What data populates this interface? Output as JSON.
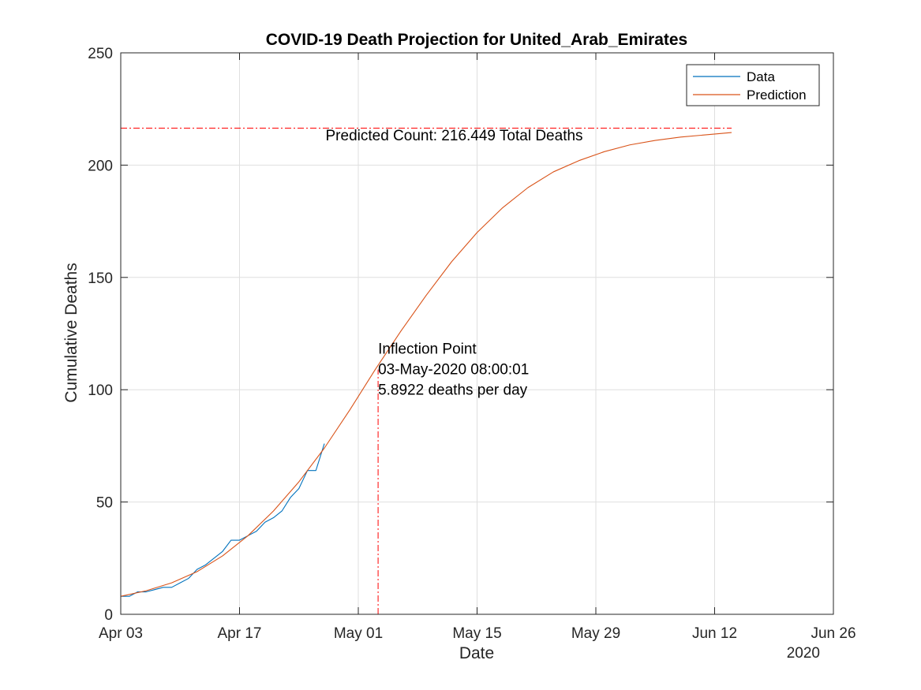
{
  "chart_data": {
    "type": "line",
    "title": "COVID-19 Death Projection for United_Arab_Emirates",
    "xlabel": "Date",
    "ylabel": "Cumulative Deaths",
    "x_secondary_label": "2020",
    "x_axis": {
      "type": "date",
      "range": [
        "2020-04-03",
        "2020-06-26"
      ],
      "ticks": [
        "2020-04-03",
        "2020-04-17",
        "2020-05-01",
        "2020-05-15",
        "2020-05-29",
        "2020-06-12",
        "2020-06-26"
      ],
      "tick_labels": [
        "Apr 03",
        "Apr 17",
        "May 01",
        "May 15",
        "May 29",
        "Jun 12",
        "Jun 26"
      ]
    },
    "ylim": [
      0,
      250
    ],
    "yticks": [
      0,
      50,
      100,
      150,
      200,
      250
    ],
    "grid": true,
    "legend_position": "top-right",
    "series": [
      {
        "name": "Data",
        "color": "#0072BD",
        "x": [
          "2020-04-03",
          "2020-04-04",
          "2020-04-05",
          "2020-04-06",
          "2020-04-07",
          "2020-04-08",
          "2020-04-09",
          "2020-04-10",
          "2020-04-11",
          "2020-04-12",
          "2020-04-13",
          "2020-04-14",
          "2020-04-15",
          "2020-04-16",
          "2020-04-17",
          "2020-04-18",
          "2020-04-19",
          "2020-04-20",
          "2020-04-21",
          "2020-04-22",
          "2020-04-23",
          "2020-04-24",
          "2020-04-25",
          "2020-04-26",
          "2020-04-27"
        ],
        "y": [
          8,
          8,
          10,
          10,
          11,
          12,
          12,
          14,
          16,
          20,
          22,
          25,
          28,
          33,
          33,
          35,
          37,
          41,
          43,
          46,
          52,
          56,
          64,
          64,
          76
        ]
      },
      {
        "name": "Prediction",
        "color": "#D95319",
        "x": [
          "2020-04-03",
          "2020-04-06",
          "2020-04-09",
          "2020-04-12",
          "2020-04-15",
          "2020-04-18",
          "2020-04-21",
          "2020-04-24",
          "2020-04-27",
          "2020-04-30",
          "2020-05-03",
          "2020-05-06",
          "2020-05-09",
          "2020-05-12",
          "2020-05-15",
          "2020-05-18",
          "2020-05-21",
          "2020-05-24",
          "2020-05-27",
          "2020-05-30",
          "2020-06-02",
          "2020-06-05",
          "2020-06-08",
          "2020-06-11",
          "2020-06-14"
        ],
        "y": [
          8,
          10.5,
          14,
          19,
          26,
          35,
          46,
          59,
          74,
          91,
          109,
          126,
          142,
          157,
          170,
          181,
          190,
          197,
          202,
          206,
          209,
          211,
          212.5,
          213.5,
          214.5
        ]
      }
    ],
    "reference_lines": [
      {
        "orientation": "horizontal",
        "value": 216.449,
        "x_range": [
          "2020-04-03",
          "2020-06-14"
        ],
        "color": "#FF0000",
        "style": "dash-dot"
      },
      {
        "orientation": "vertical",
        "value": "2020-05-03T08:00:01",
        "y_range": [
          0,
          109
        ],
        "color": "#FF0000",
        "style": "dash-dot"
      }
    ],
    "annotations": [
      {
        "lines": [
          "Predicted Count: 216.449 Total Deaths"
        ],
        "x": "2020-05-11",
        "y": 211
      },
      {
        "lines": [
          "Inflection Point",
          "03-May-2020 08:00:01",
          "5.8922 deaths per day"
        ],
        "x": "2020-05-03T08:00:01",
        "y": 116
      }
    ]
  }
}
